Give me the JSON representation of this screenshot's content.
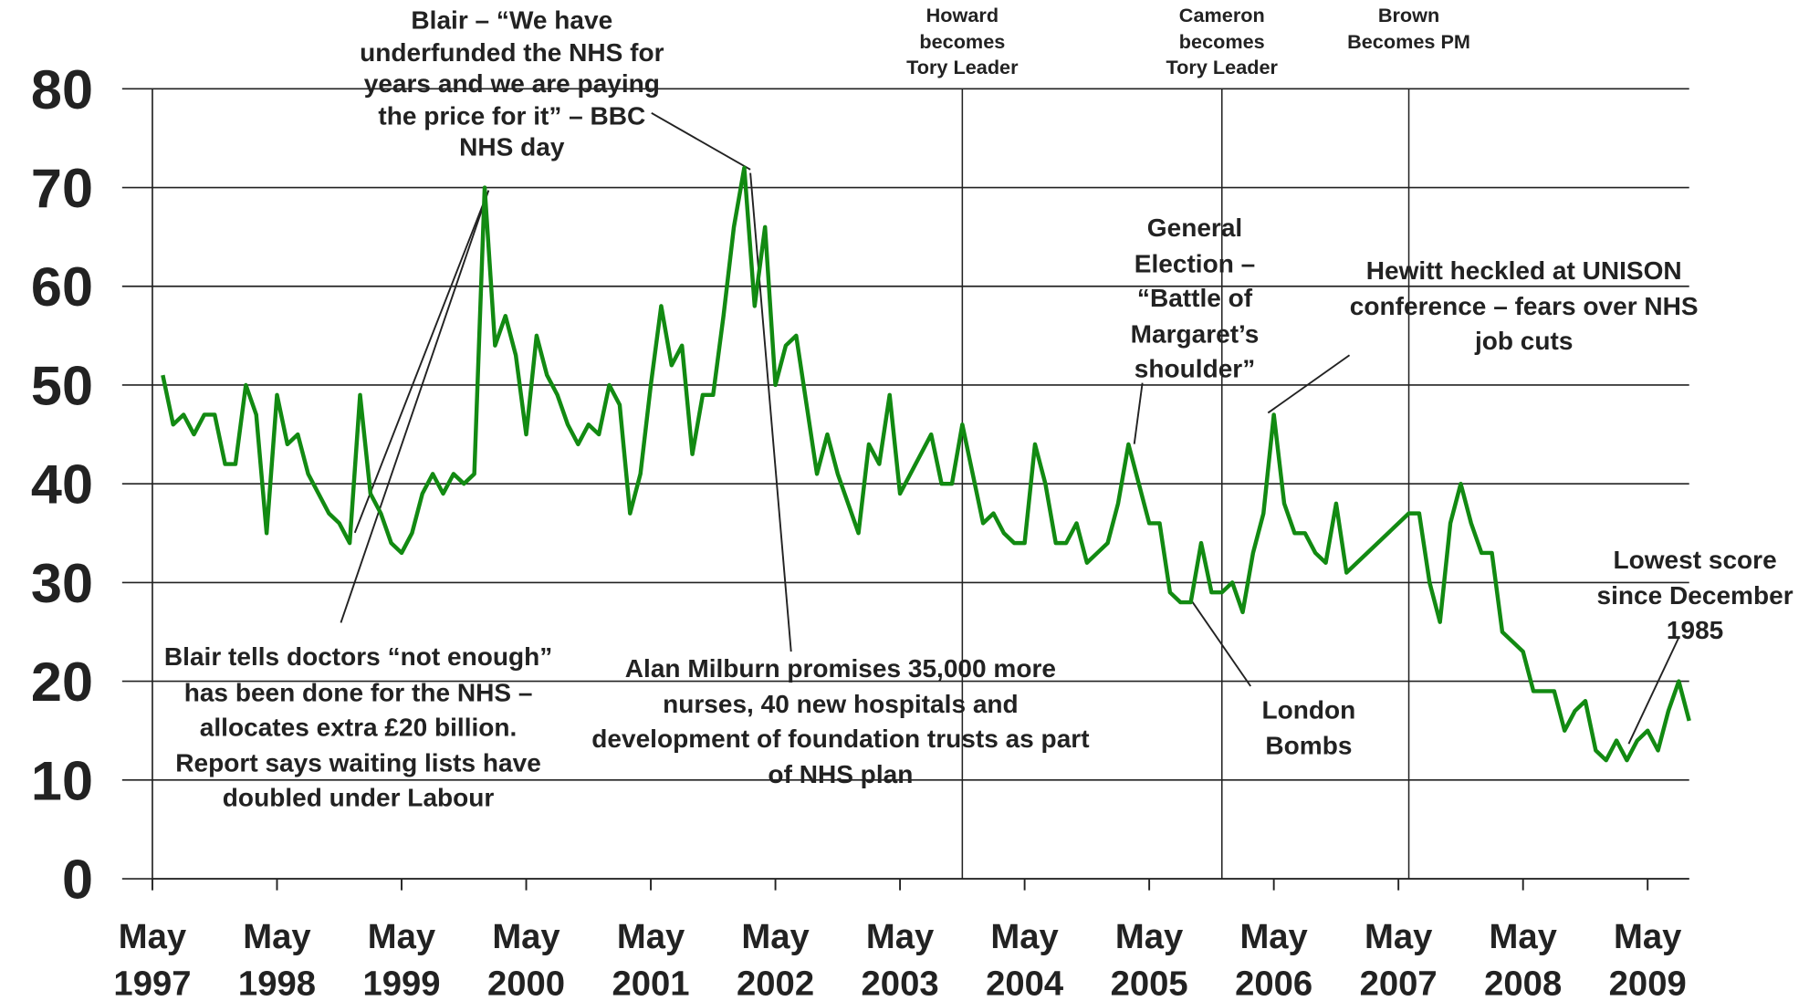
{
  "chart_data": {
    "type": "line",
    "x": [
      "1997-06",
      "1997-07",
      "1997-08",
      "1997-09",
      "1997-10",
      "1997-11",
      "1997-12",
      "1998-01",
      "1998-02",
      "1998-03",
      "1998-04",
      "1998-05",
      "1998-06",
      "1998-07",
      "1998-08",
      "1998-09",
      "1998-10",
      "1998-11",
      "1998-12",
      "1999-01",
      "1999-02",
      "1999-03",
      "1999-04",
      "1999-05",
      "1999-06",
      "1999-07",
      "1999-08",
      "1999-09",
      "1999-10",
      "1999-11",
      "1999-12",
      "2000-01",
      "2000-02",
      "2000-03",
      "2000-04",
      "2000-05",
      "2000-06",
      "2000-07",
      "2000-08",
      "2000-09",
      "2000-10",
      "2000-11",
      "2000-12",
      "2001-01",
      "2001-02",
      "2001-03",
      "2001-04",
      "2001-05",
      "2001-06",
      "2001-07",
      "2001-08",
      "2001-09",
      "2001-10",
      "2001-11",
      "2001-12",
      "2002-01",
      "2002-02",
      "2002-03",
      "2002-04",
      "2002-05",
      "2002-06",
      "2002-07",
      "2002-08",
      "2002-09",
      "2002-10",
      "2002-11",
      "2002-12",
      "2003-01",
      "2003-02",
      "2003-03",
      "2003-04",
      "2003-05",
      "2003-06",
      "2003-07",
      "2003-08",
      "2003-09",
      "2003-10",
      "2003-11",
      "2003-12",
      "2004-01",
      "2004-02",
      "2004-03",
      "2004-04",
      "2004-05",
      "2004-06",
      "2004-07",
      "2004-08",
      "2004-09",
      "2004-10",
      "2004-11",
      "2004-12",
      "2005-01",
      "2005-02",
      "2005-03",
      "2005-04",
      "2005-05",
      "2005-06",
      "2005-07",
      "2005-08",
      "2005-09",
      "2005-10",
      "2005-11",
      "2005-12",
      "2006-01",
      "2006-02",
      "2006-03",
      "2006-04",
      "2006-05",
      "2006-06",
      "2006-07",
      "2006-08",
      "2006-09",
      "2006-10",
      "2006-11",
      "2006-12",
      "2007-01",
      "2007-06",
      "2007-07",
      "2007-08",
      "2007-09",
      "2007-10",
      "2007-11",
      "2007-12",
      "2008-01",
      "2008-02",
      "2008-03",
      "2008-04",
      "2008-05",
      "2008-06",
      "2008-07",
      "2008-08",
      "2008-09",
      "2008-10",
      "2008-11",
      "2008-12",
      "2009-01",
      "2009-02",
      "2009-03",
      "2009-04",
      "2009-05",
      "2009-06",
      "2009-07",
      "2009-08",
      "2009-09"
    ],
    "series": [
      {
        "color": "#128a12",
        "values": [
          51,
          46,
          47,
          45,
          47,
          47,
          42,
          42,
          50,
          47,
          35,
          49,
          44,
          45,
          41,
          39,
          37,
          36,
          34,
          49,
          39,
          37,
          34,
          33,
          35,
          39,
          41,
          39,
          41,
          40,
          41,
          70,
          54,
          57,
          53,
          45,
          55,
          51,
          49,
          46,
          44,
          46,
          45,
          50,
          48,
          37,
          41,
          50,
          58,
          52,
          54,
          43,
          49,
          49,
          57,
          66,
          72,
          58,
          66,
          50,
          54,
          55,
          48,
          41,
          45,
          41,
          38,
          35,
          44,
          42,
          49,
          39,
          41,
          43,
          45,
          40,
          40,
          46,
          41,
          36,
          37,
          35,
          34,
          34,
          44,
          40,
          34,
          34,
          36,
          32,
          33,
          34,
          38,
          44,
          40,
          36,
          36,
          29,
          28,
          28,
          34,
          29,
          29,
          30,
          27,
          33,
          37,
          47,
          38,
          35,
          35,
          33,
          32,
          38,
          31,
          32,
          37,
          37,
          30,
          26,
          36,
          40,
          36,
          33,
          33,
          25,
          24,
          23,
          19,
          19,
          19,
          15,
          17,
          18,
          13,
          12,
          14,
          12,
          14,
          15,
          13,
          17,
          20,
          16
        ]
      }
    ],
    "xlim": [
      "1997-05",
      "2009-09"
    ],
    "xticks": [
      {
        "value": "1997-05",
        "label": "May 1997"
      },
      {
        "value": "1998-05",
        "label": "May 1998"
      },
      {
        "value": "1999-05",
        "label": "May 1999"
      },
      {
        "value": "2000-05",
        "label": "May 2000"
      },
      {
        "value": "2001-05",
        "label": "May 2001"
      },
      {
        "value": "2002-05",
        "label": "May 2002"
      },
      {
        "value": "2003-05",
        "label": "May 2003"
      },
      {
        "value": "2004-05",
        "label": "May 2004"
      },
      {
        "value": "2005-05",
        "label": "May 2005"
      },
      {
        "value": "2006-05",
        "label": "May 2006"
      },
      {
        "value": "2007-05",
        "label": "May 2007"
      },
      {
        "value": "2008-05",
        "label": "May 2008"
      },
      {
        "value": "2009-05",
        "label": "May 2009"
      }
    ],
    "ylim": [
      0,
      80
    ],
    "yticks": [
      0,
      10,
      20,
      30,
      40,
      50,
      60,
      70,
      80
    ],
    "grid": true,
    "events": [
      {
        "x": "2003-11",
        "label": "Howard becomes Tory Leader"
      },
      {
        "x": "2005-12",
        "label": "Cameron becomes Tory Leader"
      },
      {
        "x": "2007-06",
        "label": "Brown Becomes PM"
      }
    ],
    "annotations": [
      {
        "text": "Blair – “We have underfunded the NHS for years and we are paying the price for it” – BBC NHS day"
      },
      {
        "text": "Blair tells doctors “not enough” has been done for the NHS – allocates extra £20 billion. Report says waiting lists have doubled under Labour"
      },
      {
        "text": "Alan Milburn promises 35,000 more nurses, 40 new hospitals and development of foundation trusts as part of NHS plan"
      },
      {
        "text": "General Election – “Battle of Margaret’s shoulder”"
      },
      {
        "text": "Hewitt heckled at UNISON conference – fears over NHS job cuts"
      },
      {
        "text": "London Bombs"
      },
      {
        "text": "Lowest score since December 1985"
      }
    ]
  }
}
